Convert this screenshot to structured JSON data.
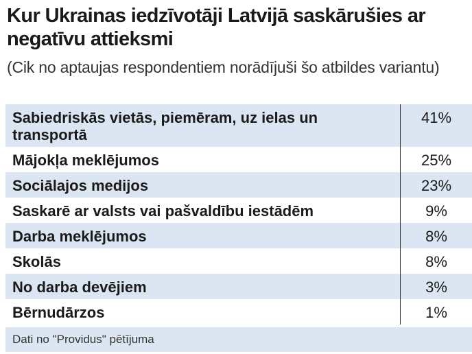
{
  "header": {
    "title": "Kur Ukrainas iedzīvotāji Latvijā saskārušies ar negatīvu attieksmi",
    "subtitle": "(Cik no aptaujas respondentiem norādījuši šo atbildes variantu)"
  },
  "table": {
    "rows": [
      [
        "Sabiedriskās vietās, piemēram, uz ielas un transportā",
        "41%"
      ],
      [
        "Mājokļa meklējumos",
        "25%"
      ],
      [
        "Sociālajos medijos",
        "23%"
      ],
      [
        "Saskarē ar valsts vai pašvaldību iestādēm",
        "9%"
      ],
      [
        "Darba meklējumos",
        "8%"
      ],
      [
        "Skolās",
        "8%"
      ],
      [
        "No darba devējiem",
        "3%"
      ],
      [
        "Bērnudārzos",
        "1%"
      ]
    ]
  },
  "footer": {
    "source": "Dati no \"Providus\" pētījuma"
  }
}
